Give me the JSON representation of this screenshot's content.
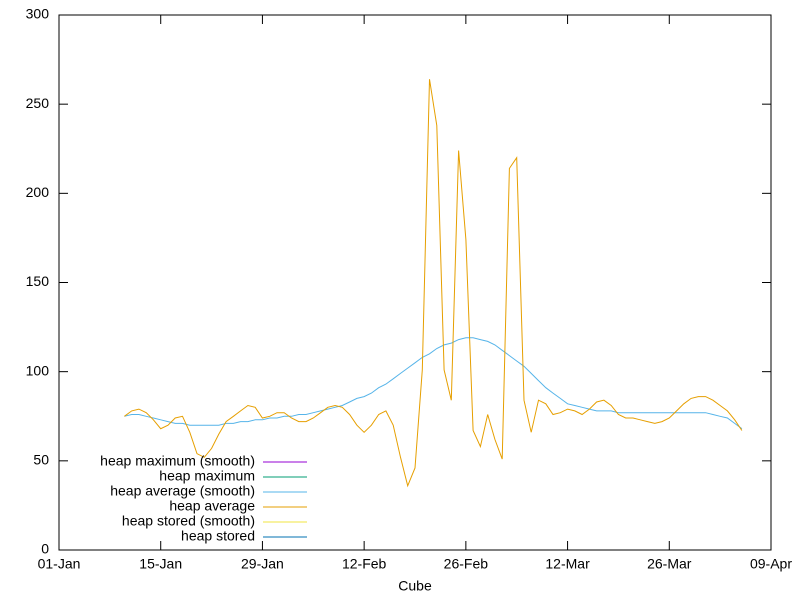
{
  "chart_data": {
    "type": "line",
    "xlabel": "Cube",
    "x": [
      9,
      10,
      11,
      12,
      13,
      14,
      15,
      16,
      17,
      18,
      19,
      20,
      21,
      22,
      23,
      24,
      25,
      26,
      27,
      28,
      29,
      30,
      31,
      32,
      33,
      34,
      35,
      36,
      37,
      38,
      39,
      40,
      41,
      42,
      43,
      44,
      45,
      46,
      47,
      48,
      49,
      50,
      51,
      52,
      53,
      54,
      55,
      56,
      57,
      58,
      59,
      60,
      61,
      62,
      63,
      64,
      65,
      66,
      67,
      68,
      69,
      70,
      71,
      72,
      73,
      74,
      75,
      76,
      77,
      78,
      79,
      80,
      81,
      82,
      83,
      84,
      85,
      86,
      87,
      88,
      89,
      90,
      91,
      92,
      93,
      94
    ],
    "series": [
      {
        "name": "heap maximum (smooth)",
        "color": "#9400d3",
        "values": [
          null,
          null,
          null,
          null,
          null,
          null,
          null,
          null,
          null,
          null,
          null,
          null,
          null,
          null,
          null,
          null,
          null,
          null,
          null,
          null,
          null,
          null,
          null,
          null,
          null,
          null,
          null,
          null,
          null,
          null,
          null,
          null,
          null,
          null,
          null,
          null,
          null,
          null,
          null,
          null,
          null,
          null,
          null,
          null,
          null,
          null,
          null,
          null,
          null,
          null,
          null,
          null,
          null,
          null,
          null,
          null,
          null,
          null,
          null,
          null,
          null,
          null,
          null,
          null,
          null,
          null,
          null,
          null,
          null,
          null,
          null,
          null,
          null,
          null,
          null,
          null,
          null,
          null,
          null,
          null,
          null,
          null,
          null,
          null,
          null,
          null
        ]
      },
      {
        "name": "heap maximum",
        "color": "#009e73",
        "values": [
          null,
          null,
          null,
          null,
          null,
          null,
          null,
          null,
          null,
          null,
          null,
          null,
          null,
          null,
          null,
          null,
          null,
          null,
          null,
          null,
          null,
          null,
          null,
          null,
          null,
          null,
          null,
          null,
          null,
          null,
          null,
          null,
          null,
          null,
          null,
          null,
          null,
          null,
          null,
          null,
          null,
          null,
          null,
          null,
          null,
          null,
          null,
          null,
          null,
          null,
          null,
          null,
          null,
          null,
          null,
          null,
          null,
          null,
          null,
          null,
          null,
          null,
          null,
          null,
          null,
          null,
          null,
          null,
          null,
          null,
          null,
          null,
          null,
          null,
          null,
          null,
          null,
          null,
          null,
          null,
          null,
          null,
          null,
          null,
          null,
          null
        ]
      },
      {
        "name": "heap average (smooth)",
        "color": "#56b4e9",
        "values": [
          75,
          76,
          76,
          75,
          74,
          73,
          72,
          71,
          71,
          70,
          70,
          70,
          70,
          70,
          71,
          71,
          72,
          72,
          73,
          73,
          74,
          74,
          75,
          75,
          76,
          76,
          77,
          78,
          79,
          80,
          81,
          83,
          85,
          86,
          88,
          91,
          93,
          96,
          99,
          102,
          105,
          108,
          110,
          113,
          115,
          116,
          118,
          119,
          119,
          118,
          117,
          115,
          112,
          109,
          106,
          103,
          99,
          95,
          91,
          88,
          85,
          82,
          81,
          80,
          79,
          78,
          78,
          78,
          77,
          77,
          77,
          77,
          77,
          77,
          77,
          77,
          77,
          77,
          77,
          77,
          77,
          76,
          75,
          74,
          71,
          68
        ]
      },
      {
        "name": "heap average",
        "color": "#e69f00",
        "values": [
          75,
          78,
          79,
          77,
          73,
          68,
          70,
          74,
          75,
          66,
          54,
          52,
          57,
          65,
          72,
          75,
          78,
          81,
          80,
          74,
          75,
          77,
          77,
          74,
          72,
          72,
          74,
          77,
          80,
          81,
          80,
          76,
          70,
          66,
          70,
          76,
          78,
          70,
          52,
          36,
          46,
          101,
          264,
          238,
          101,
          84,
          224,
          174,
          67,
          58,
          76,
          62,
          51,
          214,
          220,
          84,
          66,
          84,
          82,
          76,
          77,
          79,
          78,
          76,
          79,
          83,
          84,
          81,
          76,
          74,
          74,
          73,
          72,
          71,
          72,
          74,
          78,
          82,
          85,
          86,
          86,
          84,
          81,
          78,
          73,
          67
        ]
      },
      {
        "name": "heap stored (smooth)",
        "color": "#f0e442",
        "values": [
          null,
          null,
          null,
          null,
          null,
          null,
          null,
          null,
          null,
          null,
          null,
          null,
          null,
          null,
          null,
          null,
          null,
          null,
          null,
          null,
          null,
          null,
          null,
          null,
          null,
          null,
          null,
          null,
          null,
          null,
          null,
          null,
          null,
          null,
          null,
          null,
          null,
          null,
          null,
          null,
          null,
          null,
          null,
          null,
          null,
          null,
          null,
          null,
          null,
          null,
          null,
          null,
          null,
          null,
          null,
          null,
          null,
          null,
          null,
          null,
          null,
          null,
          null,
          null,
          null,
          null,
          null,
          null,
          null,
          null,
          null,
          null,
          null,
          null,
          null,
          null,
          null,
          null,
          null,
          null,
          null,
          null,
          null,
          null,
          null,
          null
        ]
      },
      {
        "name": "heap stored",
        "color": "#0072b2",
        "values": [
          null,
          null,
          null,
          null,
          null,
          null,
          null,
          null,
          null,
          null,
          null,
          null,
          null,
          null,
          null,
          null,
          null,
          null,
          null,
          null,
          null,
          null,
          null,
          null,
          null,
          null,
          null,
          null,
          null,
          null,
          null,
          null,
          null,
          null,
          null,
          null,
          null,
          null,
          null,
          null,
          null,
          null,
          null,
          null,
          null,
          null,
          null,
          null,
          null,
          null,
          null,
          null,
          null,
          null,
          null,
          null,
          null,
          null,
          null,
          null,
          null,
          null,
          null,
          null,
          null,
          null,
          null,
          null,
          null,
          null,
          null,
          null,
          null,
          null,
          null,
          null,
          null,
          null,
          null,
          null,
          null,
          null,
          null,
          null,
          null,
          null
        ]
      }
    ],
    "xlim": [
      0,
      98
    ],
    "xticks": [
      {
        "value": 0,
        "label": "01-Jan"
      },
      {
        "value": 14,
        "label": "15-Jan"
      },
      {
        "value": 28,
        "label": "29-Jan"
      },
      {
        "value": 42,
        "label": "12-Feb"
      },
      {
        "value": 56,
        "label": "26-Feb"
      },
      {
        "value": 70,
        "label": "12-Mar"
      },
      {
        "value": 84,
        "label": "26-Mar"
      },
      {
        "value": 98,
        "label": "09-Apr"
      }
    ],
    "ylim": [
      0,
      300
    ],
    "yticks": [
      0,
      50,
      100,
      150,
      200,
      250,
      300
    ],
    "legend": "bottom-left"
  }
}
